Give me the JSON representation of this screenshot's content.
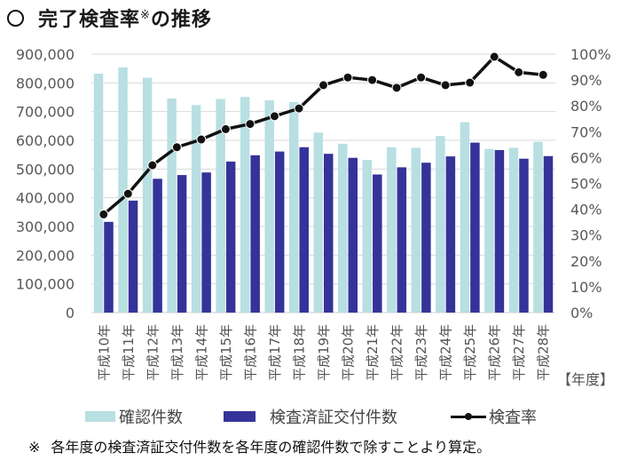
{
  "title": {
    "prefix_symbol": "circle-bullet",
    "text": "完了検査率",
    "superscript": "※",
    "suffix": "の推移"
  },
  "colors": {
    "confirmations": "#b8dfe2",
    "certificates": "#353399",
    "rate_line": "#111111",
    "gridline": "#d9d9d9",
    "axis_text": "#595959"
  },
  "chart_data": {
    "type": "bar+line",
    "title": "完了検査率※の推移",
    "xlabel": "【年度】",
    "categories": [
      "平成10年",
      "平成11年",
      "平成12年",
      "平成13年",
      "平成14年",
      "平成15年",
      "平成16年",
      "平成17年",
      "平成18年",
      "平成19年",
      "平成20年",
      "平成21年",
      "平成22年",
      "平成23年",
      "平成24年",
      "平成25年",
      "平成26年",
      "平成27年",
      "平成28年"
    ],
    "series": [
      {
        "name": "確認件数",
        "type": "bar",
        "axis": "left",
        "values": [
          832000,
          854000,
          818000,
          746000,
          723000,
          744000,
          751000,
          739000,
          733000,
          627000,
          588000,
          532000,
          576000,
          574000,
          615000,
          663000,
          570000,
          574000,
          595000
        ]
      },
      {
        "name": "検査済証交付件数",
        "type": "bar",
        "axis": "left",
        "values": [
          316000,
          390000,
          466000,
          479000,
          488000,
          526000,
          548000,
          561000,
          576000,
          553000,
          539000,
          481000,
          506000,
          522000,
          544000,
          592000,
          566000,
          536000,
          545000
        ]
      },
      {
        "name": "検査率",
        "type": "line",
        "axis": "right",
        "unit": "%",
        "values": [
          38,
          46,
          57,
          64,
          67,
          71,
          73,
          76,
          79,
          88,
          91,
          90,
          87,
          91,
          88,
          89,
          99,
          93,
          92
        ]
      }
    ],
    "left_axis": {
      "range": [
        0,
        900000
      ],
      "ticks": [
        "0",
        "100,000",
        "200,000",
        "300,000",
        "400,000",
        "500,000",
        "600,000",
        "700,000",
        "800,000",
        "900,000"
      ]
    },
    "right_axis": {
      "range": [
        0,
        100
      ],
      "ticks": [
        "0%",
        "10%",
        "20%",
        "30%",
        "40%",
        "50%",
        "60%",
        "70%",
        "80%",
        "90%",
        "100%"
      ]
    },
    "grid": true,
    "legend_position": "bottom"
  },
  "legend": {
    "items": [
      {
        "label": "確認件数",
        "marker": "light-bar-swatch"
      },
      {
        "label": "検査済証交付件数",
        "marker": "dark-bar-swatch"
      },
      {
        "label": "検査率",
        "marker": "line-dot-swatch"
      }
    ]
  },
  "footnote": {
    "mark": "※",
    "text": "各年度の検査済証交付件数を各年度の確認件数で除すことより算定。"
  }
}
